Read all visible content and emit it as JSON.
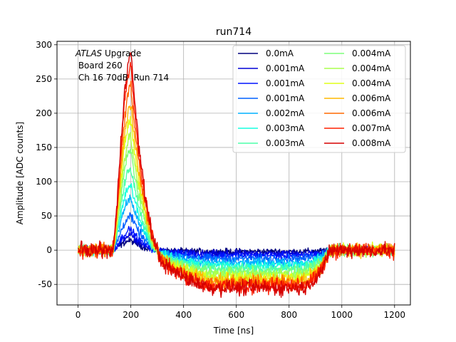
{
  "chart_data": {
    "type": "line",
    "title": "run714",
    "xlabel": "Time [ns]",
    "ylabel": "Amplitude [ADC counts]",
    "xlim": [
      -80,
      1260
    ],
    "ylim": [
      -80,
      305
    ],
    "xticks": [
      0,
      200,
      400,
      600,
      800,
      1000,
      1200
    ],
    "yticks": [
      -50,
      0,
      50,
      100,
      150,
      200,
      250,
      300
    ],
    "grid": true,
    "legend": {
      "placement": "top-right",
      "columns": 2
    },
    "annotation": {
      "line1_italic": "ATLAS",
      "line1_rest": " Upgrade",
      "line2": " Board 260",
      "line3": " Ch 16 70dB  Run 714"
    },
    "series": [
      {
        "name": "0.0mA",
        "color": "#00007f",
        "peak": 14,
        "undershoot": -2
      },
      {
        "name": "0.001mA",
        "color": "#0000d6",
        "peak": 22,
        "undershoot": -5
      },
      {
        "name": "0.001mA",
        "color": "#0014ff",
        "peak": 30,
        "undershoot": -8
      },
      {
        "name": "0.001mA",
        "color": "#0060ff",
        "peak": 50,
        "undershoot": -12
      },
      {
        "name": "0.002mA",
        "color": "#00b0ff",
        "peak": 75,
        "undershoot": -18
      },
      {
        "name": "0.003mA",
        "color": "#17ffe0",
        "peak": 95,
        "undershoot": -22
      },
      {
        "name": "0.003mA",
        "color": "#4dffaa",
        "peak": 120,
        "undershoot": -27
      },
      {
        "name": "0.004mA",
        "color": "#7dff7a",
        "peak": 145,
        "undershoot": -32
      },
      {
        "name": "0.004mA",
        "color": "#aaff4d",
        "peak": 165,
        "undershoot": -36
      },
      {
        "name": "0.004mA",
        "color": "#e0ff17",
        "peak": 190,
        "undershoot": -40
      },
      {
        "name": "0.006mA",
        "color": "#ffb900",
        "peak": 212,
        "undershoot": -44
      },
      {
        "name": "0.006mA",
        "color": "#ff6800",
        "peak": 238,
        "undershoot": -48
      },
      {
        "name": "0.007mA",
        "color": "#ff2000",
        "peak": 268,
        "undershoot": -52
      },
      {
        "name": "0.008mA",
        "color": "#d60000",
        "peak": 288,
        "undershoot": -55
      }
    ]
  }
}
